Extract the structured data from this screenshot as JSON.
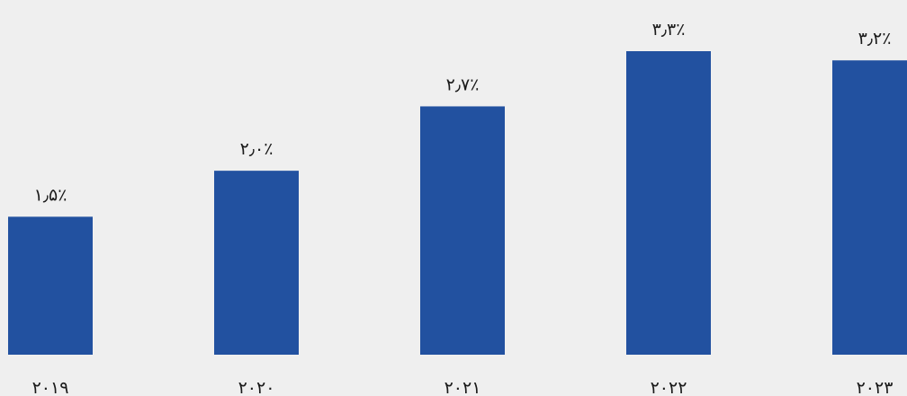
{
  "colors": {
    "background": "#efefef",
    "bar": "#2251a0",
    "text": "#1a1a1a"
  },
  "chart_data": {
    "type": "bar",
    "title": "",
    "xlabel": "",
    "ylabel": "",
    "grid": false,
    "legend": false,
    "ylim": [
      0,
      3.3
    ],
    "categories": [
      "۲۰۱۹",
      "۲۰۲۰",
      "۲۰۲۱",
      "۲۰۲۲",
      "۲۰۲۳"
    ],
    "values": [
      1.5,
      2.0,
      2.7,
      3.3,
      3.2
    ],
    "data_labels": [
      "۱٫۵٪",
      "۲٫۰٪",
      "۲٫۷٪",
      "۳٫۳٪",
      "۳٫۲٪"
    ]
  }
}
